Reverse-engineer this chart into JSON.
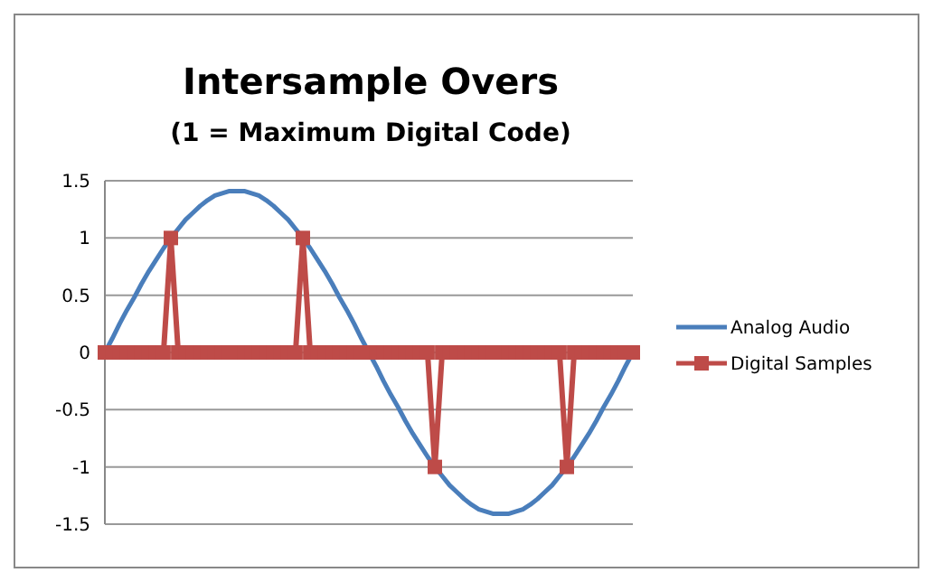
{
  "chart_data": {
    "type": "line",
    "title": "Intersample Overs",
    "subtitle": "(1 = Maximum Digital Code)",
    "categories": [
      null,
      null,
      null,
      null,
      null,
      null,
      null,
      null,
      null,
      null,
      null,
      null,
      null,
      null,
      null,
      null,
      null,
      null,
      null,
      null,
      null,
      null,
      null,
      null,
      null,
      null,
      null,
      null,
      null,
      null,
      null,
      null,
      null,
      null,
      null,
      null,
      null,
      null,
      null,
      null,
      null,
      null,
      null,
      null,
      null,
      null,
      null,
      null,
      null,
      null,
      null,
      null,
      null,
      null,
      null,
      null,
      null,
      null,
      null,
      null,
      null,
      null,
      null,
      null,
      null,
      null,
      null,
      null,
      null,
      null,
      null,
      null,
      null
    ],
    "series": [
      {
        "name": "Analog Audio",
        "color": "#4a7ebb",
        "marker": "none",
        "values": [
          0,
          0.12,
          0.25,
          0.37,
          0.48,
          0.6,
          0.71,
          0.81,
          0.91,
          1,
          1.08,
          1.16,
          1.22,
          1.28,
          1.33,
          1.37,
          1.39,
          1.41,
          1.41,
          1.41,
          1.39,
          1.37,
          1.33,
          1.28,
          1.22,
          1.16,
          1.08,
          1,
          0.91,
          0.81,
          0.71,
          0.6,
          0.48,
          0.37,
          0.25,
          0.12,
          0,
          -0.12,
          -0.25,
          -0.37,
          -0.48,
          -0.6,
          -0.71,
          -0.81,
          -0.91,
          -1,
          -1.08,
          -1.16,
          -1.22,
          -1.28,
          -1.33,
          -1.37,
          -1.39,
          -1.41,
          -1.41,
          -1.41,
          -1.39,
          -1.37,
          -1.33,
          -1.28,
          -1.22,
          -1.16,
          -1.08,
          -1,
          -0.91,
          -0.81,
          -0.71,
          -0.6,
          -0.48,
          -0.37,
          -0.25,
          -0.12,
          0
        ]
      },
      {
        "name": "Digital Samples",
        "color": "#be4b48",
        "marker": "square",
        "values": [
          0,
          0,
          0,
          0,
          0,
          0,
          0,
          0,
          0,
          1,
          0,
          0,
          0,
          0,
          0,
          0,
          0,
          0,
          0,
          0,
          0,
          0,
          0,
          0,
          0,
          0,
          0,
          1,
          0,
          0,
          0,
          0,
          0,
          0,
          0,
          0,
          0,
          0,
          0,
          0,
          0,
          0,
          0,
          0,
          0,
          -1,
          0,
          0,
          0,
          0,
          0,
          0,
          0,
          0,
          0,
          0,
          0,
          0,
          0,
          0,
          0,
          0,
          0,
          -1,
          0,
          0,
          0,
          0,
          0,
          0,
          0,
          0,
          0
        ]
      }
    ],
    "ylim": [
      -1.5,
      1.5
    ],
    "yticks": [
      -1.5,
      -1,
      -0.5,
      0,
      0.5,
      1,
      1.5
    ],
    "grid": "y",
    "legend": "right",
    "tick_labels": "y",
    "line_style": "solid"
  }
}
